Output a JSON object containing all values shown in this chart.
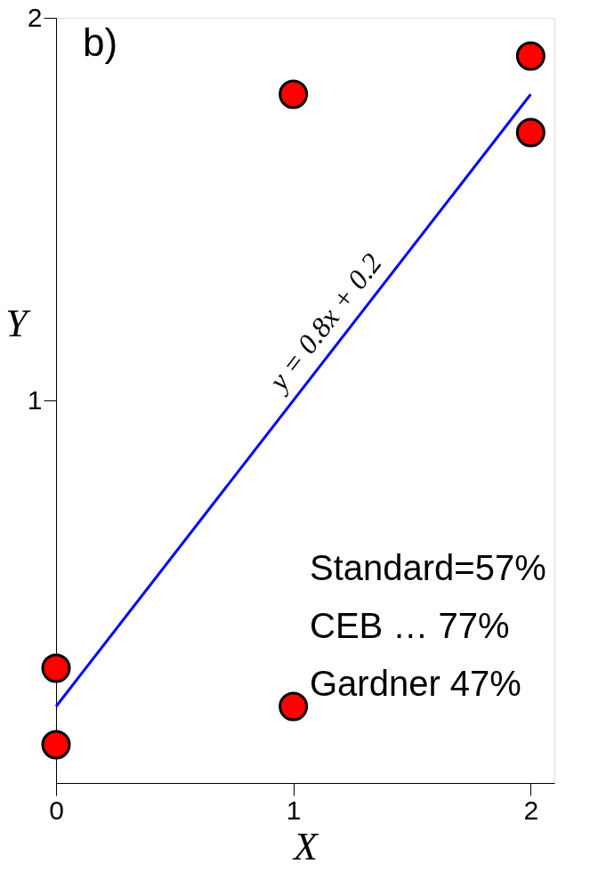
{
  "chart_data": {
    "type": "scatter",
    "title": "b)",
    "xlabel": "X",
    "ylabel": "Y",
    "xlim": [
      0,
      2.1
    ],
    "ylim": [
      0,
      2
    ],
    "xticks": [
      0,
      1,
      2
    ],
    "yticks": [
      1,
      2
    ],
    "grid": false,
    "series": [
      {
        "color": "#ff0000",
        "marker": "circle",
        "x": [
          0,
          0,
          1,
          1,
          2,
          2
        ],
        "values": [
          0.1,
          0.3,
          0.2,
          1.8,
          1.9,
          1.7
        ]
      },
      {
        "type": "line",
        "color": "#0000ff",
        "x": [
          0,
          2
        ],
        "values": [
          0.2,
          1.8
        ]
      }
    ],
    "annotations": [
      {
        "text": "y = 0.8x + 0.2",
        "x": 1,
        "y": 1
      },
      "Standard=57%",
      "CEB …  77%",
      "Gardner 47%"
    ]
  }
}
